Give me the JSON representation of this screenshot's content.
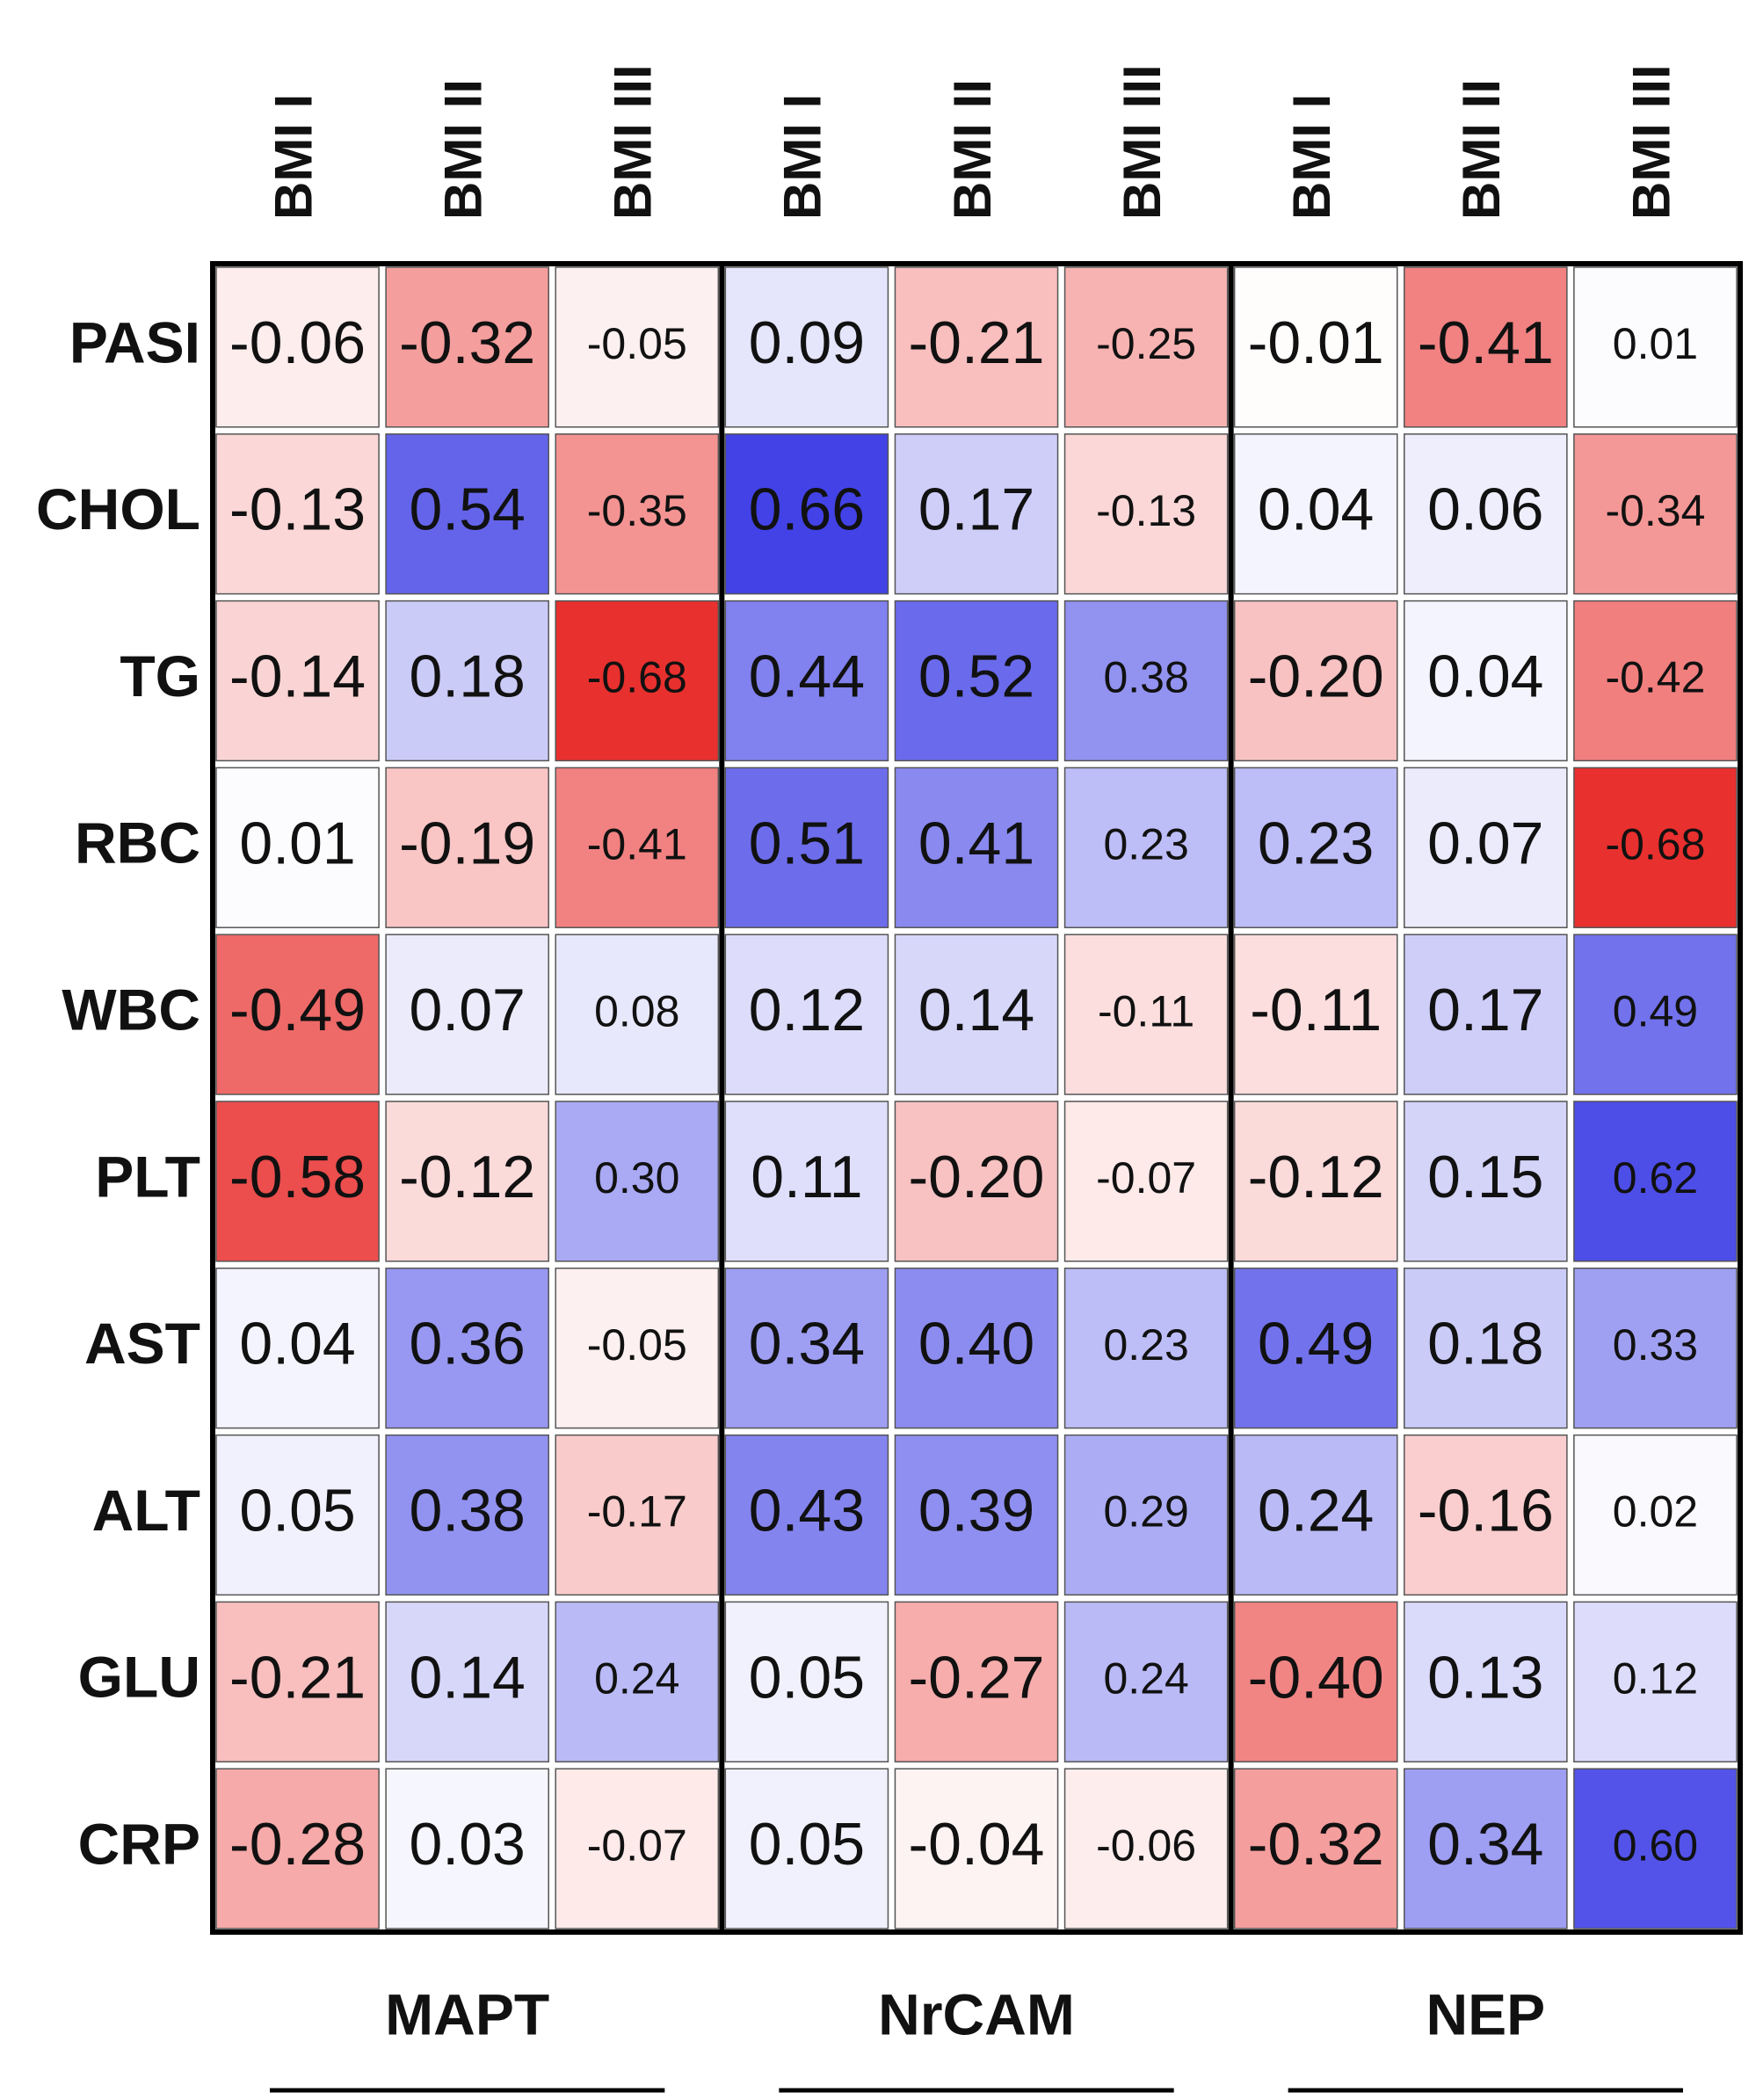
{
  "chart_data": {
    "type": "heatmap",
    "rows": [
      "PASI",
      "CHOL",
      "TG",
      "RBC",
      "WBC",
      "PLT",
      "AST",
      "ALT",
      "GLU",
      "CRP"
    ],
    "columns": [
      "BMI I",
      "BMI II",
      "BMI III",
      "BMI I",
      "BMI II",
      "BMI III",
      "BMI I",
      "BMI II",
      "BMI III"
    ],
    "groups": [
      "MAPT",
      "NrCAM",
      "NEP"
    ],
    "colors": {
      "negative": "#e8302e",
      "zero": "#ffffff",
      "positive": "#3c3ce6"
    },
    "values": [
      [
        -0.06,
        -0.32,
        -0.05,
        0.09,
        -0.21,
        -0.25,
        -0.01,
        -0.41,
        0.01
      ],
      [
        -0.13,
        0.54,
        -0.35,
        0.66,
        0.17,
        -0.13,
        0.04,
        0.06,
        -0.34
      ],
      [
        -0.14,
        0.18,
        -0.68,
        0.44,
        0.52,
        0.38,
        -0.2,
        0.04,
        -0.42
      ],
      [
        0.01,
        -0.19,
        -0.41,
        0.51,
        0.41,
        0.23,
        0.23,
        0.07,
        -0.68
      ],
      [
        -0.49,
        0.07,
        0.08,
        0.12,
        0.14,
        -0.11,
        -0.11,
        0.17,
        0.49
      ],
      [
        -0.58,
        -0.12,
        0.3,
        0.11,
        -0.2,
        -0.07,
        -0.12,
        0.15,
        0.62
      ],
      [
        0.04,
        0.36,
        -0.05,
        0.34,
        0.4,
        0.23,
        0.49,
        0.18,
        0.33
      ],
      [
        0.05,
        0.38,
        -0.17,
        0.43,
        0.39,
        0.29,
        0.24,
        -0.16,
        0.02
      ],
      [
        -0.21,
        0.14,
        0.24,
        0.05,
        -0.27,
        0.24,
        -0.4,
        0.13,
        0.12
      ],
      [
        -0.28,
        0.03,
        -0.07,
        0.05,
        -0.04,
        -0.06,
        -0.32,
        0.34,
        0.6
      ]
    ],
    "value_labels": [
      [
        "-0.06",
        "-0.32",
        "-0.05",
        "0.09",
        "-0.21",
        "-0.25",
        "-0.01",
        "-0.41",
        "0.01"
      ],
      [
        "-0.13",
        "0.54",
        "-0.35",
        "0.66",
        "0.17",
        "-0.13",
        "0.04",
        "0.06",
        "-0.34"
      ],
      [
        "-0.14",
        "0.18",
        "-0.68",
        "0.44",
        "0.52",
        "0.38",
        "-0.20",
        "0.04",
        "-0.42"
      ],
      [
        "0.01",
        "-0.19",
        "-0.41",
        "0.51",
        "0.41",
        "0.23",
        "0.23",
        "0.07",
        "-0.68"
      ],
      [
        "-0.49",
        "0.07",
        "0.08",
        "0.12",
        "0.14",
        "-0.11",
        "-0.11",
        "0.17",
        "0.49"
      ],
      [
        "-0.58",
        "-0.12",
        "0.30",
        "0.11",
        "-0.20",
        "-0.07",
        "-0.12",
        "0.15",
        "0.62"
      ],
      [
        "0.04",
        "0.36",
        "-0.05",
        "0.34",
        "0.40",
        "0.23",
        "0.49",
        "0.18",
        "0.33"
      ],
      [
        "0.05",
        "0.38",
        "-0.17",
        "0.43",
        "0.39",
        "0.29",
        "0.24",
        "-0.16",
        "0.02"
      ],
      [
        "-0.21",
        "0.14",
        "0.24",
        "0.05",
        "-0.27",
        "0.24",
        "-0.40",
        "0.13",
        "0.12"
      ],
      [
        "-0.28",
        "0.03",
        "-0.07",
        "0.05",
        "-0.04",
        "-0.06",
        "-0.32",
        "0.34",
        "0.60"
      ]
    ]
  }
}
